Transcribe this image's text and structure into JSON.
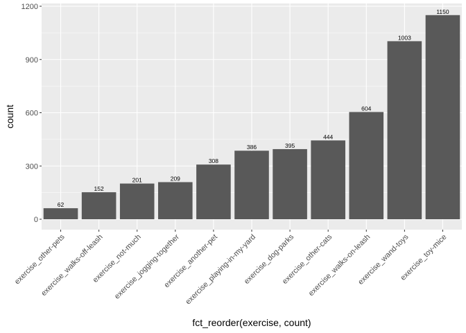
{
  "chart_data": {
    "type": "bar",
    "xlabel": "fct_reorder(exercise, count)",
    "ylabel": "count",
    "ylim": [
      0,
      1200
    ],
    "yticks": [
      0,
      300,
      600,
      900,
      1200
    ],
    "grid": true,
    "categories": [
      "exercise_other-pets",
      "exercise_walks-off-leash",
      "exercise_not-much",
      "exercise_jogging-together",
      "exercise_another-pet",
      "exercise_playing-in-my-yard",
      "exercise_dog-parks",
      "exercise_other-cats",
      "exercise_walks-on-leash",
      "exercise_wand-toys",
      "exercise_toy-mice"
    ],
    "values": [
      62,
      152,
      201,
      209,
      308,
      386,
      395,
      444,
      604,
      1003,
      1150
    ],
    "colors": {
      "panel": "#ebebeb",
      "bar": "#595959",
      "grid_major": "#ffffff",
      "tick": "#333333"
    }
  }
}
